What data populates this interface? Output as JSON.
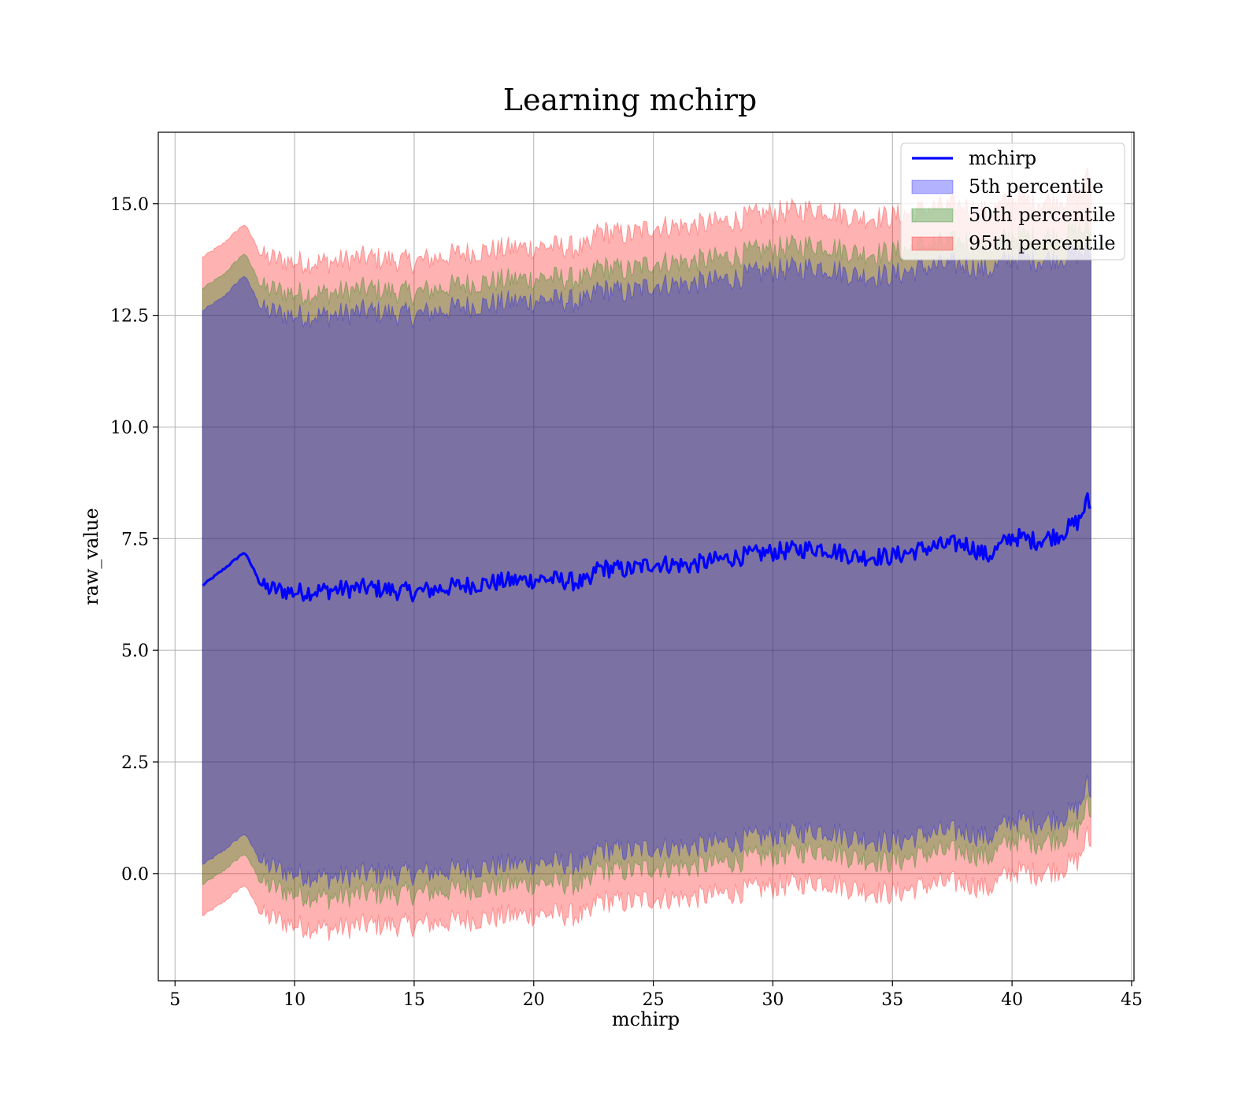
{
  "chart_data": {
    "type": "area",
    "title": "Learning mchirp",
    "xlabel": "mchirp",
    "ylabel": "raw_value",
    "xlim": [
      4.3,
      45.1
    ],
    "ylim": [
      -2.4,
      16.6
    ],
    "xticks": [
      5,
      10,
      15,
      20,
      25,
      30,
      35,
      40,
      45
    ],
    "yticks": [
      0.0,
      2.5,
      5.0,
      7.5,
      10.0,
      12.5,
      15.0
    ],
    "xtick_labels": [
      "5",
      "10",
      "15",
      "20",
      "25",
      "30",
      "35",
      "40",
      "45"
    ],
    "ytick_labels": [
      "0.0",
      "2.5",
      "5.0",
      "7.5",
      "10.0",
      "12.5",
      "15.0"
    ],
    "grid": true,
    "legend_position": "top-right",
    "x": [
      6.15,
      7.0,
      7.9,
      8.7,
      10.0,
      11.5,
      13.0,
      15.0,
      17.0,
      19.0,
      20.5,
      22.4,
      22.6,
      24.0,
      25.0,
      26.5,
      28.0,
      30.0,
      32.0,
      33.5,
      35.0,
      36.5,
      38.0,
      39.0,
      40.0,
      41.0,
      42.0,
      42.8,
      43.15,
      43.3
    ],
    "series": [
      {
        "name": "mchirp",
        "kind": "line",
        "color": "#0000ff",
        "values": [
          6.45,
          6.8,
          7.2,
          6.4,
          6.3,
          6.35,
          6.4,
          6.3,
          6.45,
          6.55,
          6.6,
          6.5,
          6.85,
          6.8,
          6.95,
          6.9,
          7.05,
          7.2,
          7.3,
          7.1,
          7.1,
          7.3,
          7.4,
          7.1,
          7.55,
          7.45,
          7.6,
          7.9,
          8.35,
          8.2
        ]
      },
      {
        "name": "5th percentile",
        "kind": "band",
        "color": "#0000ff",
        "lower": [
          0.2,
          0.5,
          0.9,
          0.2,
          0.0,
          -0.1,
          0.0,
          0.0,
          0.1,
          0.2,
          0.25,
          0.2,
          0.55,
          0.5,
          0.6,
          0.6,
          0.7,
          0.85,
          1.0,
          0.8,
          0.7,
          0.9,
          0.95,
          0.8,
          1.2,
          1.15,
          1.25,
          1.45,
          2.0,
          1.7
        ],
        "upper": [
          12.6,
          12.9,
          13.4,
          12.6,
          12.5,
          12.5,
          12.6,
          12.5,
          12.7,
          12.8,
          12.85,
          12.8,
          13.1,
          13.0,
          13.2,
          13.2,
          13.3,
          13.5,
          13.6,
          13.4,
          13.4,
          13.6,
          13.65,
          13.5,
          13.8,
          13.75,
          13.8,
          13.9,
          13.9,
          13.9
        ]
      },
      {
        "name": "50th percentile",
        "kind": "band",
        "color": "#008000",
        "lower": [
          -0.25,
          0.05,
          0.45,
          -0.25,
          -0.45,
          -0.55,
          -0.45,
          -0.45,
          -0.35,
          -0.25,
          -0.2,
          -0.25,
          0.1,
          0.05,
          0.15,
          0.15,
          0.25,
          0.4,
          0.55,
          0.35,
          0.25,
          0.45,
          0.5,
          0.35,
          0.75,
          0.7,
          0.8,
          1.0,
          1.55,
          1.25
        ],
        "upper": [
          13.1,
          13.4,
          13.9,
          13.1,
          13.0,
          13.0,
          13.1,
          13.0,
          13.2,
          13.3,
          13.35,
          13.3,
          13.6,
          13.5,
          13.7,
          13.7,
          13.8,
          14.0,
          14.1,
          13.9,
          13.9,
          14.1,
          14.15,
          14.0,
          14.3,
          14.25,
          14.3,
          14.4,
          14.4,
          14.4
        ]
      },
      {
        "name": "95th percentile",
        "kind": "band",
        "color": "#ff0000",
        "lower": [
          -0.95,
          -0.65,
          -0.25,
          -0.95,
          -1.15,
          -1.25,
          -1.15,
          -1.15,
          -1.05,
          -0.95,
          -0.9,
          -0.95,
          -0.6,
          -0.65,
          -0.55,
          -0.55,
          -0.45,
          -0.3,
          -0.15,
          -0.35,
          -0.45,
          -0.25,
          -0.2,
          -0.35,
          0.05,
          0.0,
          0.1,
          0.3,
          0.85,
          0.6
        ],
        "upper": [
          13.8,
          14.1,
          14.55,
          13.8,
          13.7,
          13.7,
          13.8,
          13.7,
          13.9,
          14.0,
          14.05,
          14.0,
          14.4,
          14.3,
          14.5,
          14.5,
          14.6,
          14.8,
          14.9,
          14.7,
          14.7,
          14.9,
          14.95,
          14.8,
          15.1,
          15.05,
          15.1,
          15.2,
          15.6,
          15.5
        ]
      }
    ]
  }
}
